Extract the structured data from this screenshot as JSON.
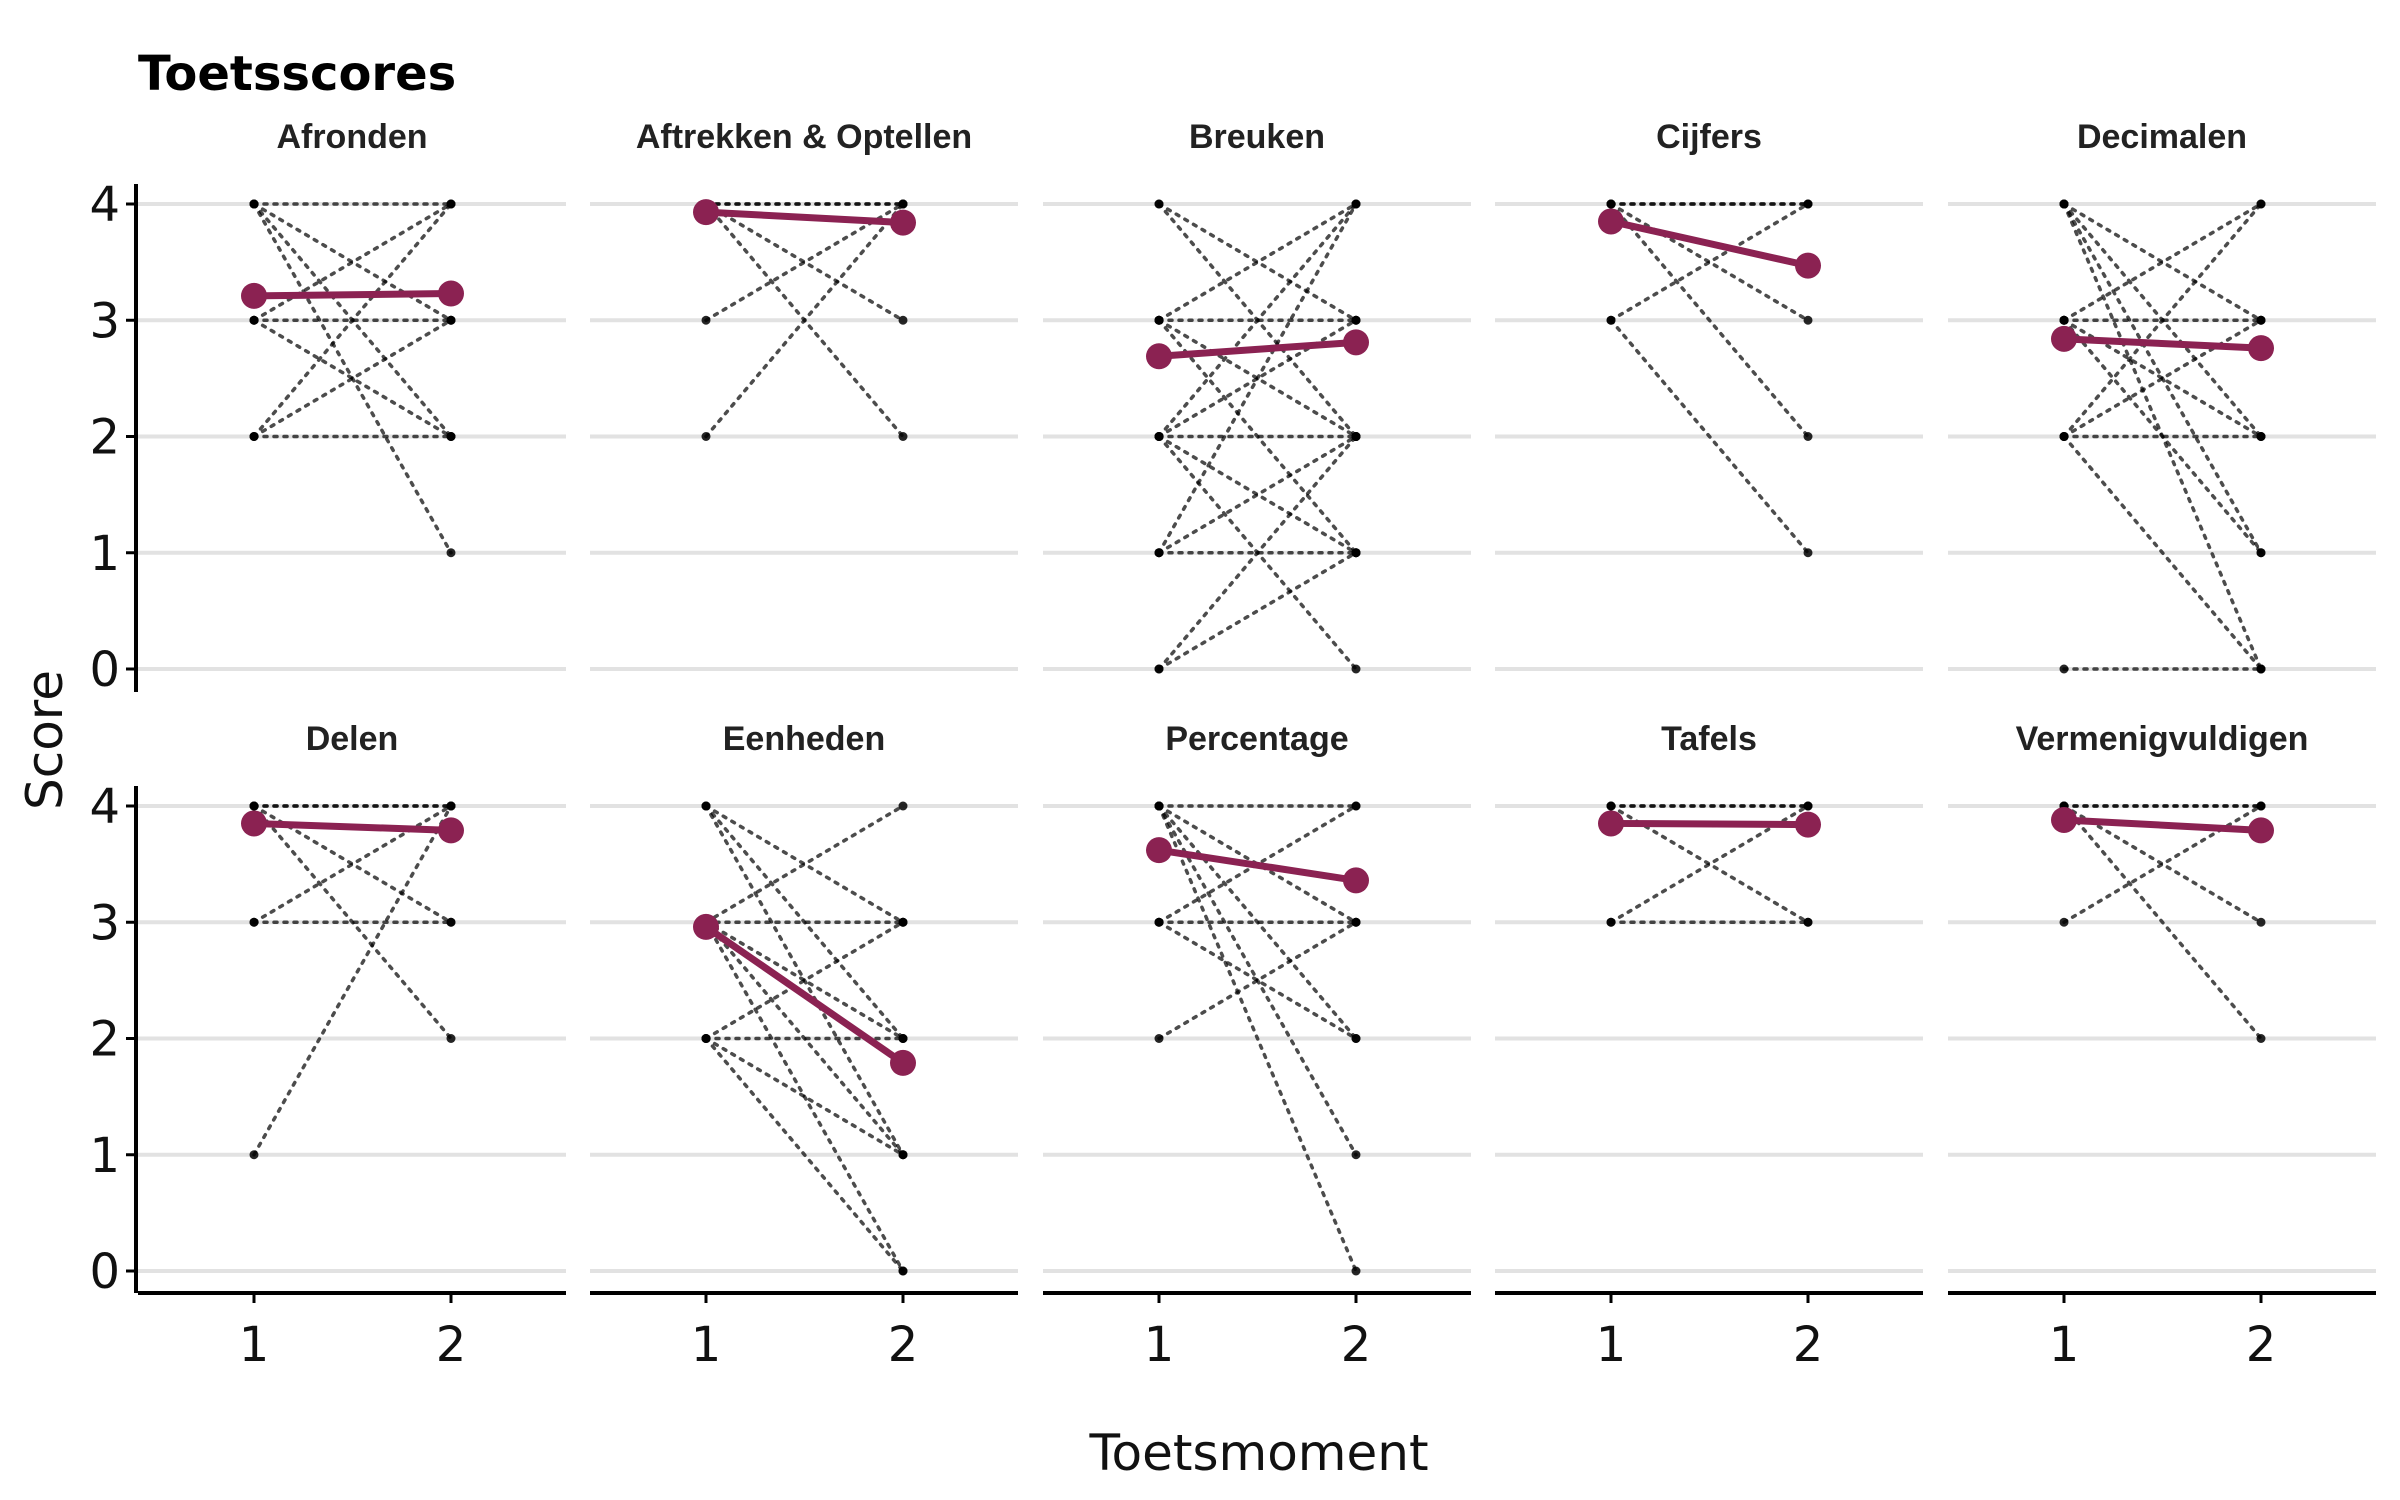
{
  "chart_data": {
    "type": "line",
    "title": "Toetsscores",
    "xlabel": "Toetsmoment",
    "ylabel": "Score",
    "x_categories": [
      "1",
      "2"
    ],
    "y_ticks": [
      "0",
      "1",
      "2",
      "3",
      "4"
    ],
    "ylim": [
      0,
      4
    ],
    "grid": "horizontal",
    "mean_color": "#8b2252",
    "individual_color": "#000000",
    "panels": [
      {
        "name": "Afronden",
        "mean": [
          3.21,
          3.23
        ],
        "individual": [
          [
            4,
            4
          ],
          [
            4,
            3
          ],
          [
            4,
            2
          ],
          [
            4,
            1
          ],
          [
            3,
            4
          ],
          [
            3,
            3
          ],
          [
            3,
            2
          ],
          [
            2,
            4
          ],
          [
            2,
            3
          ],
          [
            2,
            2
          ]
        ]
      },
      {
        "name": "Aftrekken & Optellen",
        "mean": [
          3.93,
          3.84
        ],
        "individual": [
          [
            4,
            4
          ],
          [
            4,
            4
          ],
          [
            4,
            3
          ],
          [
            4,
            2
          ],
          [
            3,
            4
          ],
          [
            2,
            4
          ]
        ]
      },
      {
        "name": "Breuken",
        "mean": [
          2.69,
          2.81
        ],
        "individual": [
          [
            4,
            3
          ],
          [
            4,
            2
          ],
          [
            3,
            4
          ],
          [
            3,
            3
          ],
          [
            3,
            2
          ],
          [
            3,
            1
          ],
          [
            2,
            4
          ],
          [
            2,
            3
          ],
          [
            2,
            2
          ],
          [
            2,
            1
          ],
          [
            2,
            0
          ],
          [
            1,
            4
          ],
          [
            1,
            2
          ],
          [
            1,
            1
          ],
          [
            0,
            2
          ],
          [
            0,
            1
          ]
        ]
      },
      {
        "name": "Cijfers",
        "mean": [
          3.85,
          3.47
        ],
        "individual": [
          [
            4,
            4
          ],
          [
            4,
            4
          ],
          [
            4,
            3
          ],
          [
            4,
            2
          ],
          [
            3,
            4
          ],
          [
            3,
            1
          ]
        ]
      },
      {
        "name": "Decimalen",
        "mean": [
          2.84,
          2.76
        ],
        "individual": [
          [
            4,
            3
          ],
          [
            4,
            2
          ],
          [
            4,
            1
          ],
          [
            4,
            0
          ],
          [
            3,
            4
          ],
          [
            3,
            3
          ],
          [
            3,
            2
          ],
          [
            3,
            1
          ],
          [
            2,
            4
          ],
          [
            2,
            3
          ],
          [
            2,
            2
          ],
          [
            2,
            0
          ],
          [
            0,
            0
          ]
        ]
      },
      {
        "name": "Delen",
        "mean": [
          3.85,
          3.79
        ],
        "individual": [
          [
            4,
            4
          ],
          [
            4,
            4
          ],
          [
            4,
            3
          ],
          [
            4,
            2
          ],
          [
            3,
            4
          ],
          [
            3,
            3
          ],
          [
            1,
            4
          ]
        ]
      },
      {
        "name": "Eenheden",
        "mean": [
          2.96,
          1.79
        ],
        "individual": [
          [
            4,
            3
          ],
          [
            4,
            2
          ],
          [
            4,
            1
          ],
          [
            3,
            4
          ],
          [
            3,
            3
          ],
          [
            3,
            2
          ],
          [
            3,
            1
          ],
          [
            3,
            0
          ],
          [
            2,
            3
          ],
          [
            2,
            2
          ],
          [
            2,
            1
          ],
          [
            2,
            0
          ]
        ]
      },
      {
        "name": "Percentage",
        "mean": [
          3.62,
          3.36
        ],
        "individual": [
          [
            4,
            4
          ],
          [
            4,
            3
          ],
          [
            4,
            2
          ],
          [
            4,
            1
          ],
          [
            4,
            0
          ],
          [
            3,
            4
          ],
          [
            3,
            3
          ],
          [
            3,
            2
          ],
          [
            2,
            3
          ]
        ]
      },
      {
        "name": "Tafels",
        "mean": [
          3.85,
          3.84
        ],
        "individual": [
          [
            4,
            4
          ],
          [
            4,
            4
          ],
          [
            4,
            3
          ],
          [
            3,
            4
          ],
          [
            3,
            3
          ]
        ]
      },
      {
        "name": "Vermenigvuldigen",
        "mean": [
          3.88,
          3.79
        ],
        "individual": [
          [
            4,
            4
          ],
          [
            4,
            4
          ],
          [
            4,
            3
          ],
          [
            4,
            2
          ],
          [
            3,
            4
          ]
        ]
      }
    ]
  }
}
